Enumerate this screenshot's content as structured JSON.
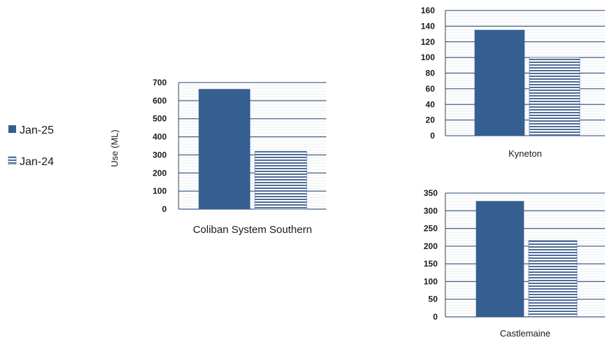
{
  "legend": {
    "items": [
      {
        "label": "Jan-25",
        "pattern": "solid"
      },
      {
        "label": "Jan-24",
        "pattern": "horizontal-stripes"
      }
    ]
  },
  "ylabel": "Use (ML)",
  "colors": {
    "jan25_fill": "#355f91",
    "jan24_stripe": "#4d6b96",
    "grid": "#1f3f6e",
    "axis": "#404040",
    "text": "#1a1a1a"
  },
  "chart_data": [
    {
      "type": "bar",
      "categories": [
        "Coliban System Southern"
      ],
      "series": [
        {
          "name": "Jan-25",
          "values": [
            663
          ]
        },
        {
          "name": "Jan-24",
          "values": [
            320
          ]
        }
      ],
      "ylim": [
        0,
        700
      ],
      "yticks": [
        0,
        100,
        200,
        300,
        400,
        500,
        600,
        700
      ],
      "ylabel": "Use (ML)",
      "grid": true
    },
    {
      "type": "bar",
      "categories": [
        "Kyneton"
      ],
      "series": [
        {
          "name": "Jan-25",
          "values": [
            135
          ]
        },
        {
          "name": "Jan-24",
          "values": [
            100
          ]
        }
      ],
      "ylim": [
        0,
        160
      ],
      "yticks": [
        0,
        20,
        40,
        60,
        80,
        100,
        120,
        140,
        160
      ],
      "grid": true
    },
    {
      "type": "bar",
      "categories": [
        "Castlemaine"
      ],
      "series": [
        {
          "name": "Jan-25",
          "values": [
            327
          ]
        },
        {
          "name": "Jan-24",
          "values": [
            216
          ]
        }
      ],
      "ylim": [
        0,
        350
      ],
      "yticks": [
        0,
        50,
        100,
        150,
        200,
        250,
        300,
        350
      ],
      "grid": true
    }
  ]
}
